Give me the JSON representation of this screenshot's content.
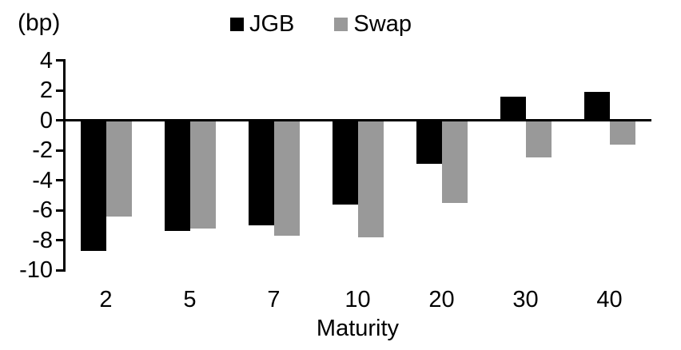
{
  "chart_data": {
    "type": "bar",
    "title": "",
    "unit_label": "(bp)",
    "xlabel": "Maturity",
    "categories": [
      "2",
      "5",
      "7",
      "10",
      "20",
      "30",
      "40"
    ],
    "series": [
      {
        "name": "JGB",
        "color": "#000000",
        "values": [
          -8.7,
          -7.4,
          -7.0,
          -5.6,
          -2.9,
          1.6,
          1.9
        ]
      },
      {
        "name": "Swap",
        "color": "#999999",
        "values": [
          -6.4,
          -7.2,
          -7.7,
          -7.8,
          -5.5,
          -2.5,
          -1.6
        ]
      }
    ],
    "y_ticks": [
      4,
      2,
      0,
      -2,
      -4,
      -6,
      -8,
      -10
    ],
    "ylim": [
      -10,
      4
    ],
    "legend_position": "top-center",
    "grid": false,
    "axis_color": "#000000",
    "background": "#ffffff"
  }
}
